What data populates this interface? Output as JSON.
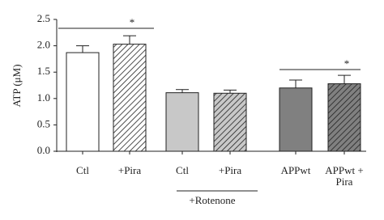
{
  "chart_data": {
    "type": "bar",
    "y_label": "ATP (μM)",
    "categories": [
      "Ctl",
      "+Pira",
      "Ctl",
      "+Pira",
      "APPwt",
      "APPwt +\nPira"
    ],
    "values": [
      1.87,
      2.03,
      1.11,
      1.1,
      1.2,
      1.28
    ],
    "errors": [
      0.13,
      0.16,
      0.06,
      0.06,
      0.15,
      0.16
    ],
    "colors": [
      "#ffffff",
      "#ffffff",
      "#c8c8c8",
      "#c8c8c8",
      "#808080",
      "#808080"
    ],
    "hatched": [
      false,
      true,
      false,
      true,
      false,
      true
    ],
    "ylim": [
      0,
      2.5
    ],
    "yticks": [
      {
        "value": 0,
        "label": "0.0"
      },
      {
        "value": 0.5,
        "label": "0.5"
      },
      {
        "value": 1,
        "label": "1.0"
      },
      {
        "value": 1.5,
        "label": "1.5"
      },
      {
        "value": 2,
        "label": "2.0"
      },
      {
        "value": 2.5,
        "label": "2.5"
      }
    ],
    "annotations": [
      "*",
      "*"
    ],
    "group_label": "+Rotenone"
  }
}
